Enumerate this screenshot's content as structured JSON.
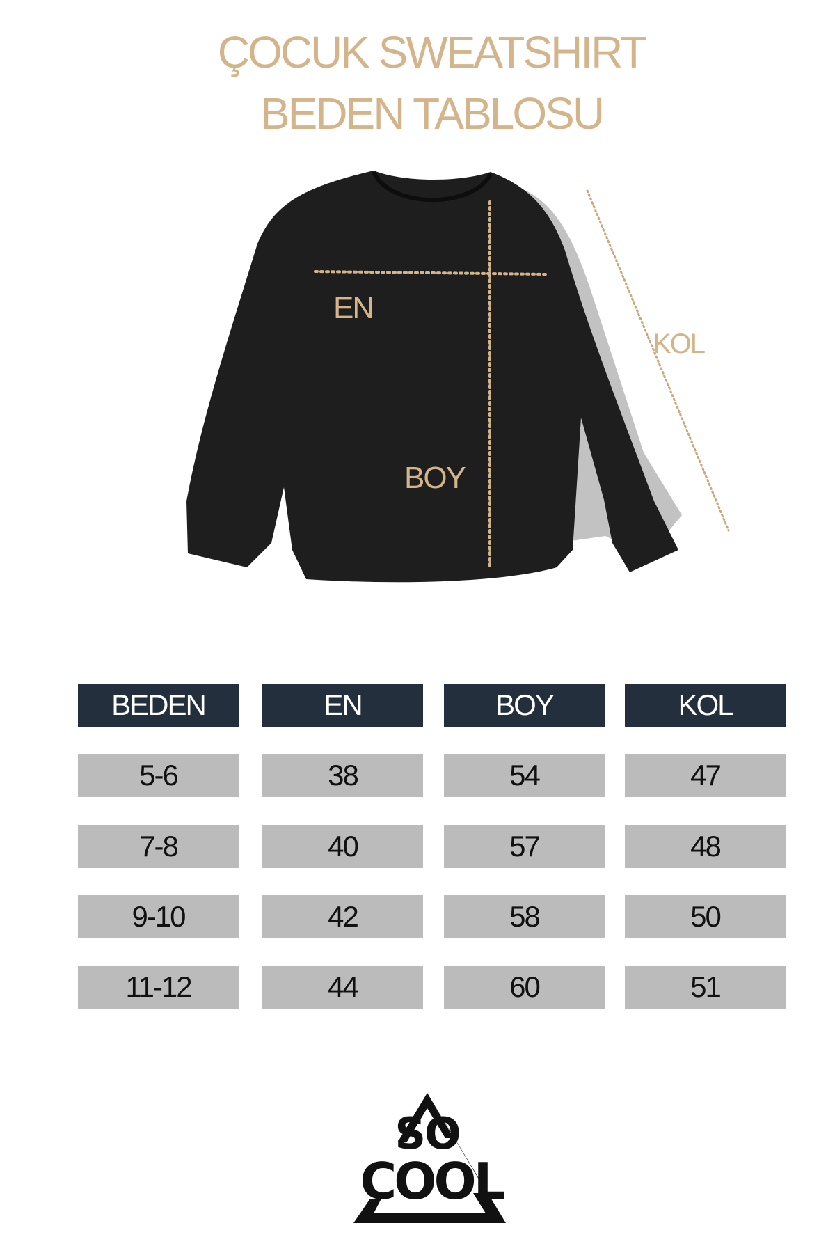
{
  "title": {
    "line1": "ÇOCUK SWEATSHIRT",
    "line2": "BEDEN TABLOSU"
  },
  "diagram": {
    "labels": {
      "en": "EN",
      "boy": "BOY",
      "kol": "KOL"
    },
    "garment_color": "#1e1e1e",
    "accent_color": "#d3b48b"
  },
  "table": {
    "headers": [
      "BEDEN",
      "EN",
      "BOY",
      "KOL"
    ],
    "rows": [
      [
        "5-6",
        "38",
        "54",
        "47"
      ],
      [
        "7-8",
        "40",
        "57",
        "48"
      ],
      [
        "9-10",
        "42",
        "58",
        "50"
      ],
      [
        "11-12",
        "44",
        "60",
        "51"
      ]
    ]
  },
  "logo": {
    "text": "SO COOL"
  }
}
